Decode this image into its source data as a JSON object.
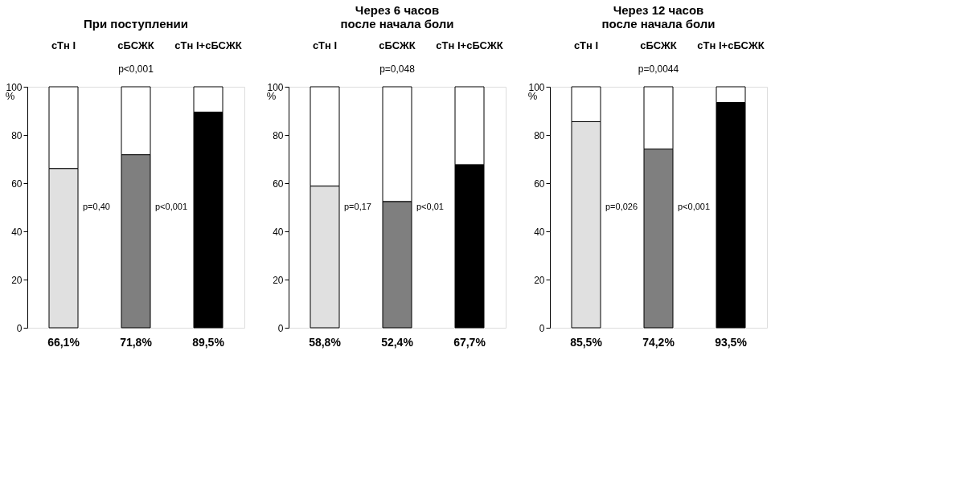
{
  "chart_data": [
    {
      "type": "bar",
      "stacked": true,
      "title": "При поступлении",
      "ylabel": "%",
      "categories": [
        "сТн I",
        "сБСЖК",
        "сТн I+сБСЖК"
      ],
      "ylim": [
        0,
        100
      ],
      "yticks": [
        0,
        20,
        40,
        60,
        80,
        100
      ],
      "grid": false,
      "series": [
        {
          "colors": [
            "#e0e0e0",
            "#7f7f7f",
            "#000000"
          ],
          "values": [
            66.1,
            71.8,
            89.5
          ],
          "value_labels": [
            "66,1%",
            "71,8%",
            "89,5%"
          ]
        },
        {
          "color": "#ffffff",
          "values": [
            33.9,
            28.2,
            10.5
          ]
        }
      ],
      "annotations": [
        "p<0,001",
        "p=0,40",
        "p<0,001"
      ]
    },
    {
      "type": "bar",
      "stacked": true,
      "title": "Через 6 часов\nпосле начала боли",
      "ylabel": "%",
      "categories": [
        "сТн I",
        "сБСЖК",
        "сТн I+сБСЖК"
      ],
      "ylim": [
        0,
        100
      ],
      "yticks": [
        0,
        20,
        40,
        60,
        80,
        100
      ],
      "grid": false,
      "series": [
        {
          "colors": [
            "#e0e0e0",
            "#7f7f7f",
            "#000000"
          ],
          "values": [
            58.8,
            52.4,
            67.7
          ],
          "value_labels": [
            "58,8%",
            "52,4%",
            "67,7%"
          ]
        },
        {
          "color": "#ffffff",
          "values": [
            41.2,
            47.6,
            32.3
          ]
        }
      ],
      "annotations": [
        "p=0,048",
        "p=0,17",
        "p<0,01"
      ]
    },
    {
      "type": "bar",
      "stacked": true,
      "title": "Через 12 часов\nпосле начала боли",
      "ylabel": "%",
      "categories": [
        "сТн I",
        "сБСЖК",
        "сТн I+сБСЖК"
      ],
      "ylim": [
        0,
        100
      ],
      "yticks": [
        0,
        20,
        40,
        60,
        80,
        100
      ],
      "grid": false,
      "series": [
        {
          "colors": [
            "#e0e0e0",
            "#7f7f7f",
            "#000000"
          ],
          "values": [
            85.5,
            74.2,
            93.5
          ],
          "value_labels": [
            "85,5%",
            "74,2%",
            "93,5%"
          ]
        },
        {
          "color": "#ffffff",
          "values": [
            14.5,
            25.8,
            6.5
          ]
        }
      ],
      "annotations": [
        "p=0,0044",
        "p=0,026",
        "p<0,001"
      ]
    }
  ]
}
